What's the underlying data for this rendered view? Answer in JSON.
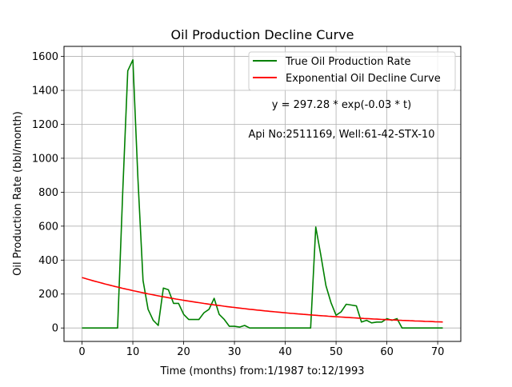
{
  "chart_data": {
    "type": "line",
    "title": "Oil Production Decline Curve",
    "xlabel": "Time (months) from:1/1987 to:12/1993",
    "ylabel": "Oil Production Rate (bbl/month)",
    "xlim": [
      -3.55,
      74.55
    ],
    "ylim": [
      -79.15,
      1659.2
    ],
    "xticks": [
      0,
      10,
      20,
      30,
      40,
      50,
      60,
      70
    ],
    "yticks": [
      0,
      200,
      400,
      600,
      800,
      1000,
      1200,
      1400,
      1600
    ],
    "grid": true,
    "legend_position": "upper-right",
    "annotations": [
      "y = 297.28 * exp(-0.03 * t)",
      "Api No:2511169, Well:61-42-STX-10"
    ],
    "series": [
      {
        "name": "True Oil Production Rate",
        "color": "#008000",
        "x": [
          0,
          1,
          2,
          3,
          4,
          5,
          6,
          7,
          8,
          9,
          10,
          11,
          12,
          13,
          14,
          15,
          16,
          17,
          18,
          19,
          20,
          21,
          22,
          23,
          24,
          25,
          26,
          27,
          28,
          29,
          30,
          31,
          32,
          33,
          34,
          35,
          36,
          37,
          38,
          39,
          40,
          41,
          42,
          43,
          44,
          45,
          46,
          47,
          48,
          49,
          50,
          51,
          52,
          53,
          54,
          55,
          56,
          57,
          58,
          59,
          60,
          61,
          62,
          63,
          64,
          65,
          66,
          67,
          68,
          69,
          70,
          71
        ],
        "y": [
          0,
          0,
          0,
          0,
          0,
          0,
          0,
          0,
          800,
          1515,
          1580,
          880,
          280,
          110,
          45,
          15,
          235,
          225,
          145,
          145,
          80,
          50,
          50,
          50,
          90,
          110,
          175,
          80,
          50,
          10,
          10,
          5,
          15,
          0,
          0,
          0,
          0,
          0,
          0,
          0,
          0,
          0,
          0,
          0,
          0,
          0,
          595,
          430,
          250,
          150,
          75,
          95,
          140,
          135,
          130,
          35,
          45,
          30,
          35,
          35,
          55,
          45,
          55,
          0,
          0,
          0,
          0,
          0,
          0,
          0,
          0,
          0
        ]
      },
      {
        "name": "Exponential Oil Decline Curve",
        "color": "#ff0000",
        "a": 297.28,
        "b": -0.03,
        "x_range": [
          0,
          71
        ],
        "equation": "y = 297.28 * exp(-0.03 * t)"
      }
    ]
  }
}
